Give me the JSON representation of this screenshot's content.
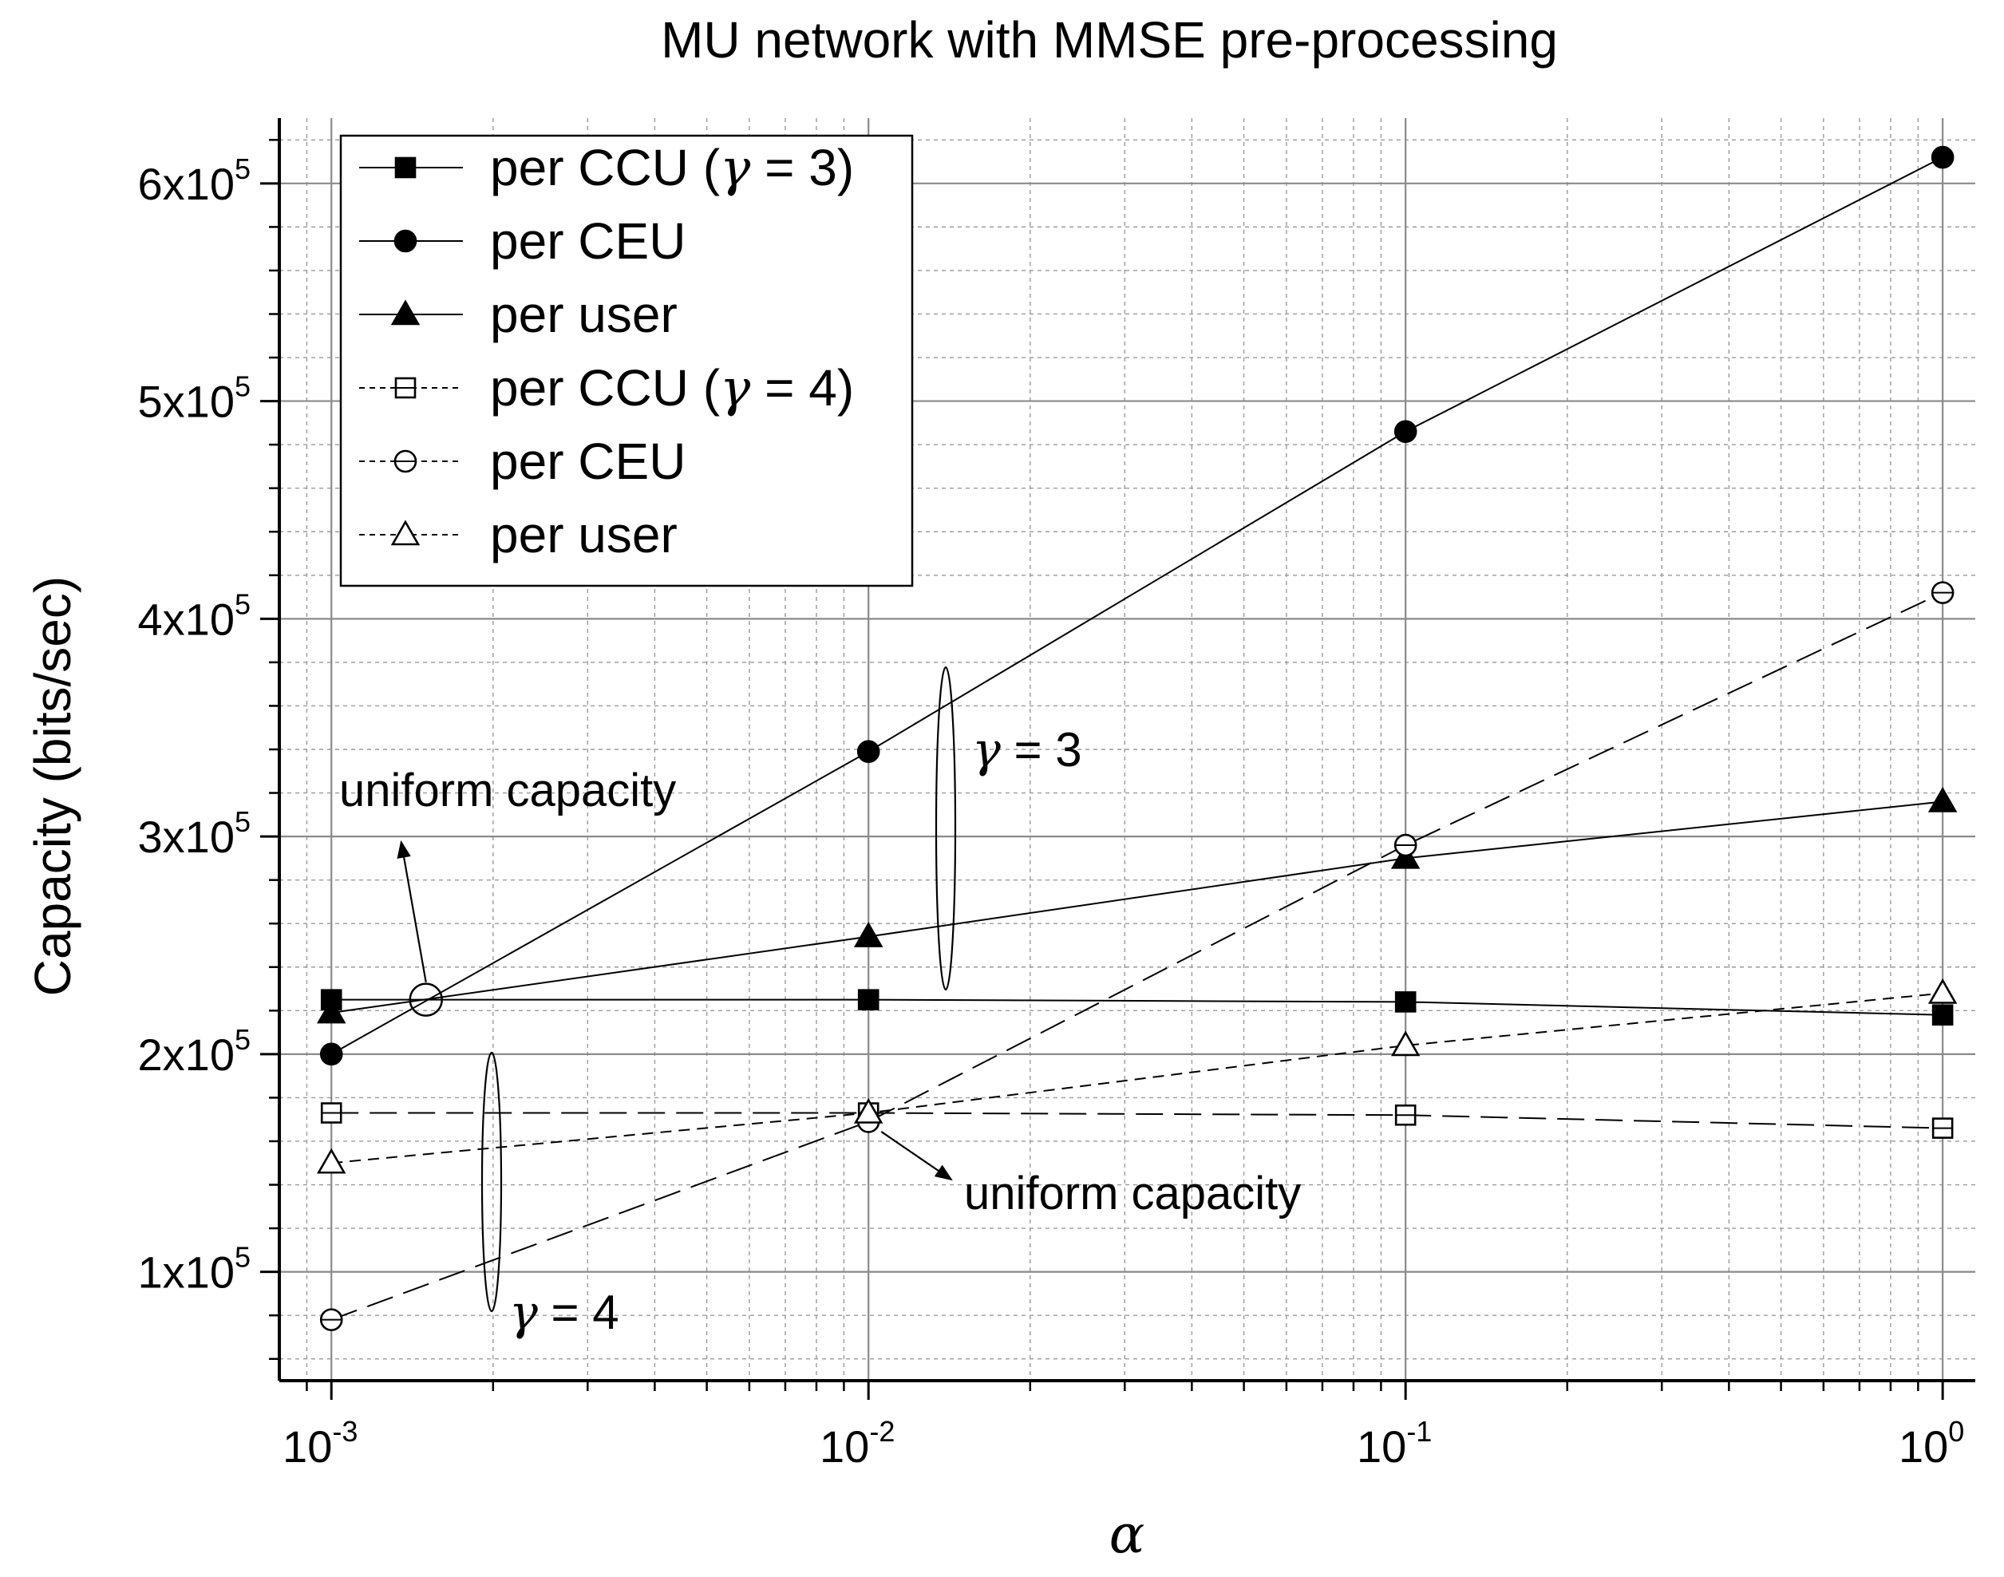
{
  "chart_data": {
    "type": "line",
    "title": "MU network with MMSE pre-processing",
    "xlabel": "α",
    "ylabel": "Capacity (bits/sec)",
    "xscale": "log",
    "xlim": [
      0.0008,
      1.15
    ],
    "ylim": [
      50000,
      630000
    ],
    "x": [
      0.001,
      0.01,
      0.1,
      1
    ],
    "xtick_labels": [
      {
        "base": "10",
        "exp": "-3"
      },
      {
        "base": "10",
        "exp": "-2"
      },
      {
        "base": "10",
        "exp": "-1"
      },
      {
        "base": "10",
        "exp": "0"
      }
    ],
    "ytick_labels": [
      {
        "value": 100000,
        "mant": "1x10",
        "exp": "5"
      },
      {
        "value": 200000,
        "mant": "2x10",
        "exp": "5"
      },
      {
        "value": 300000,
        "mant": "3x10",
        "exp": "5"
      },
      {
        "value": 400000,
        "mant": "4x10",
        "exp": "5"
      },
      {
        "value": 500000,
        "mant": "5x10",
        "exp": "5"
      },
      {
        "value": 600000,
        "mant": "6x10",
        "exp": "5"
      }
    ],
    "grid": true,
    "legend_position": "top-left",
    "series": [
      {
        "name": "per CCU (γ = 3)",
        "legend_parts": [
          "per CCU (",
          "γ",
          " = 3)"
        ],
        "marker": "square",
        "filled": true,
        "dash": "solid",
        "values": [
          225000,
          225000,
          224000,
          218000
        ]
      },
      {
        "name": "per CEU",
        "legend_parts": [
          "per CEU"
        ],
        "marker": "circle",
        "filled": true,
        "dash": "solid",
        "values": [
          200000,
          339000,
          486000,
          612000
        ]
      },
      {
        "name": "per user",
        "legend_parts": [
          "per user"
        ],
        "marker": "triangle",
        "filled": true,
        "dash": "solid",
        "values": [
          219000,
          254000,
          290000,
          316000
        ]
      },
      {
        "name": "per CCU (γ = 4)",
        "legend_parts": [
          "per CCU (",
          "γ",
          " = 4)"
        ],
        "marker": "square",
        "filled": false,
        "dash": "longdash",
        "values": [
          173000,
          173000,
          172000,
          166000
        ]
      },
      {
        "name": "per CEU",
        "legend_parts": [
          "per CEU"
        ],
        "marker": "circle",
        "filled": false,
        "dash": "longdash",
        "values": [
          78000,
          169000,
          296000,
          412000
        ]
      },
      {
        "name": "per user",
        "legend_parts": [
          "per user"
        ],
        "marker": "triangle",
        "filled": false,
        "dash": "shortdash",
        "values": [
          150000,
          173000,
          204000,
          228000
        ]
      }
    ],
    "annotations": {
      "uniform_top": "uniform capacity",
      "uniform_bottom": "uniform capacity",
      "gamma3": {
        "sym": "γ",
        "rest": " = 3"
      },
      "gamma4": {
        "sym": "γ",
        "rest": " = 4"
      },
      "uniform_top_point": {
        "x": 0.0015,
        "y": 225000
      },
      "uniform_bottom_point": {
        "x": 0.01,
        "y": 171000
      }
    }
  }
}
